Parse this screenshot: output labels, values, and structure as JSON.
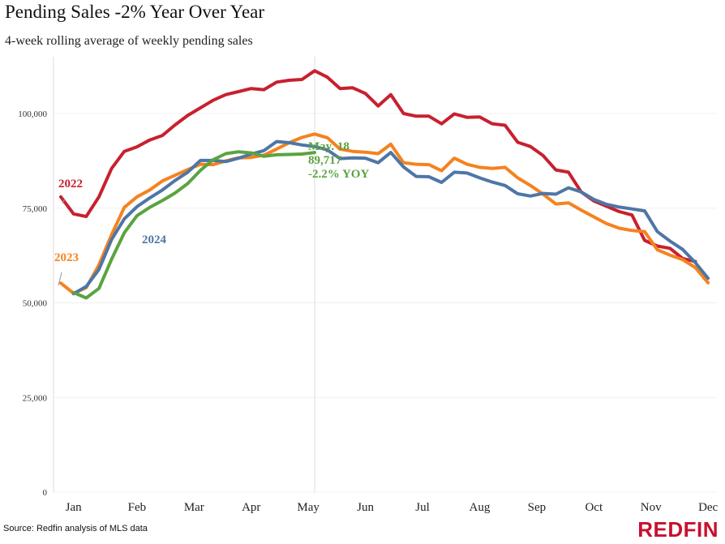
{
  "title": "Pending Sales -2% Year Over Year",
  "subtitle": "4-week rolling average of weekly pending sales",
  "source": "Source: Redfin analysis of MLS data",
  "logo": "REDFIN",
  "chart_data": {
    "type": "line",
    "title": "Pending Sales -2% Year Over Year",
    "subtitle": "4-week rolling average of weekly pending sales",
    "xlabel": "",
    "ylabel": "",
    "ylim": [
      0,
      115000
    ],
    "xlim": [
      1,
      53
    ],
    "y_ticks": [
      0,
      25000,
      50000,
      75000,
      100000
    ],
    "y_tick_labels": [
      "0",
      "25,000",
      "50,000",
      "75,000",
      "100,000"
    ],
    "x_tick_positions": [
      2,
      7,
      11.5,
      16,
      20.5,
      25,
      29.5,
      34,
      38.5,
      43,
      47.5,
      52
    ],
    "x_tick_labels": [
      "Jan",
      "Feb",
      "Mar",
      "Apr",
      "May",
      "Jun",
      "Jul",
      "Aug",
      "Sep",
      "Oct",
      "Nov",
      "Dec"
    ],
    "grid": true,
    "reference_line_week": 21,
    "series": [
      {
        "name": "2022",
        "color": "#c8202f",
        "x": [
          1,
          2,
          3,
          4,
          5,
          6,
          7,
          8,
          9,
          10,
          11,
          12,
          13,
          14,
          15,
          16,
          17,
          18,
          19,
          20,
          21,
          22,
          23,
          24,
          25,
          26,
          27,
          28,
          29,
          30,
          31,
          32,
          33,
          34,
          35,
          36,
          37,
          38,
          39,
          40,
          41,
          42,
          43,
          44,
          45,
          46,
          47,
          48,
          49,
          50,
          51,
          52
        ],
        "values": [
          78000,
          73500,
          72800,
          78000,
          85500,
          90000,
          91200,
          93000,
          94200,
          97000,
          99500,
          101500,
          103500,
          105000,
          105800,
          106600,
          106300,
          108300,
          108800,
          109000,
          111300,
          109600,
          106600,
          106800,
          105300,
          102000,
          105000,
          100000,
          99300,
          99300,
          97300,
          99900,
          99000,
          99100,
          97300,
          96900,
          92400,
          91300,
          88900,
          85100,
          84500,
          79300,
          76900,
          75500,
          74100,
          73200,
          66500,
          65000,
          64400,
          61700,
          60900,
          null
        ]
      },
      {
        "name": "2023",
        "color": "#f5821f",
        "x": [
          1,
          2,
          3,
          4,
          5,
          6,
          7,
          8,
          9,
          10,
          11,
          12,
          13,
          14,
          15,
          16,
          17,
          18,
          19,
          20,
          21,
          22,
          23,
          24,
          25,
          26,
          27,
          28,
          29,
          30,
          31,
          32,
          33,
          34,
          35,
          36,
          37,
          38,
          39,
          40,
          41,
          42,
          43,
          44,
          45,
          46,
          47,
          48,
          49,
          50,
          51,
          52
        ],
        "values": [
          55200,
          52500,
          54000,
          60000,
          68000,
          75200,
          78000,
          79800,
          82200,
          83700,
          85200,
          86600,
          86500,
          87500,
          88300,
          88400,
          89000,
          90600,
          92300,
          93700,
          94600,
          93600,
          90600,
          90000,
          89800,
          89400,
          91900,
          87000,
          86600,
          86500,
          84900,
          88200,
          86600,
          85800,
          85500,
          85800,
          83000,
          81000,
          78700,
          76100,
          76400,
          74500,
          72700,
          70900,
          69700,
          69100,
          68800,
          64000,
          62600,
          61400,
          59300,
          55300
        ]
      },
      {
        "name": "2024",
        "color": "#4e76a6",
        "x": [
          2,
          3,
          4,
          5,
          6,
          7,
          8,
          9,
          10,
          11,
          12,
          13,
          14,
          15,
          16,
          17,
          18,
          19,
          20,
          21,
          22,
          23,
          24,
          25,
          26,
          27,
          28,
          29,
          30,
          31,
          32,
          33,
          34,
          35,
          36,
          37,
          38,
          39,
          40,
          41,
          42,
          43,
          44,
          45,
          46,
          47,
          48,
          49,
          50,
          51,
          52
        ],
        "values": [
          52400,
          54300,
          58800,
          66700,
          72200,
          75400,
          77700,
          79800,
          82300,
          84500,
          87600,
          87600,
          87300,
          88200,
          89300,
          90200,
          92600,
          92300,
          91700,
          91300,
          90400,
          88100,
          88300,
          88200,
          87000,
          89700,
          85900,
          83400,
          83300,
          81800,
          84500,
          84300,
          83000,
          81900,
          81000,
          78800,
          78200,
          78900,
          78700,
          80400,
          79300,
          77300,
          76000,
          75300,
          74800,
          74300,
          68800,
          66300,
          64100,
          60600,
          56500
        ]
      },
      {
        "name": "2024",
        "color": "#5ba33f",
        "x": [
          2,
          3,
          4,
          5,
          6,
          7,
          8,
          9,
          10,
          11,
          12,
          13,
          14,
          15,
          16,
          17,
          18,
          19,
          20,
          21
        ],
        "values": [
          52700,
          51300,
          53800,
          61500,
          68500,
          73000,
          75200,
          77000,
          79000,
          81500,
          85000,
          87800,
          89400,
          89900,
          89600,
          88700,
          89100,
          89200,
          89300,
          89700
        ]
      }
    ],
    "series_labels": [
      {
        "series": 0,
        "text": "2022"
      },
      {
        "series": 1,
        "text": "2023"
      },
      {
        "series": 2,
        "text": "2024"
      }
    ],
    "annotation": {
      "lines": [
        "May. 18",
        "89,717",
        "-2.2% YOY"
      ],
      "color": "#5ba33f"
    }
  }
}
